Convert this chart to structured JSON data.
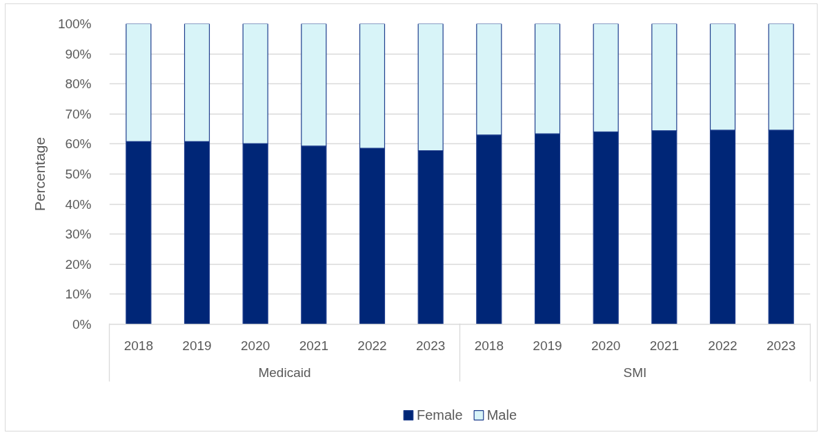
{
  "chart_data": {
    "type": "bar",
    "stacked": true,
    "ylabel": "Percentage",
    "categories": [
      "2018",
      "2019",
      "2020",
      "2021",
      "2022",
      "2023",
      "2018",
      "2019",
      "2020",
      "2021",
      "2022",
      "2023"
    ],
    "annotations": [
      "Medicaid",
      "SMI"
    ],
    "series": [
      {
        "name": "Female",
        "color": "#002677",
        "values": [
          60.8,
          60.8,
          60.1,
          59.3,
          58.6,
          57.8,
          63.0,
          63.4,
          64.0,
          64.4,
          64.6,
          64.6
        ]
      },
      {
        "name": "Male",
        "color": "#d8f4f8",
        "values": [
          39.2,
          39.2,
          39.9,
          40.7,
          41.4,
          42.2,
          37.0,
          36.6,
          36.0,
          35.6,
          35.4,
          35.4
        ]
      }
    ],
    "ylim": [
      0,
      100
    ],
    "yticks": [
      {
        "value": 0,
        "label": "0%"
      },
      {
        "value": 10,
        "label": "10%"
      },
      {
        "value": 20,
        "label": "20%"
      },
      {
        "value": 30,
        "label": "30%"
      },
      {
        "value": 40,
        "label": "40%"
      },
      {
        "value": 50,
        "label": "50%"
      },
      {
        "value": 60,
        "label": "60%"
      },
      {
        "value": 70,
        "label": "70%"
      },
      {
        "value": 80,
        "label": "80%"
      },
      {
        "value": 90,
        "label": "90%"
      },
      {
        "value": 100,
        "label": "100%"
      }
    ],
    "grid": "y",
    "legend": "bottom"
  }
}
